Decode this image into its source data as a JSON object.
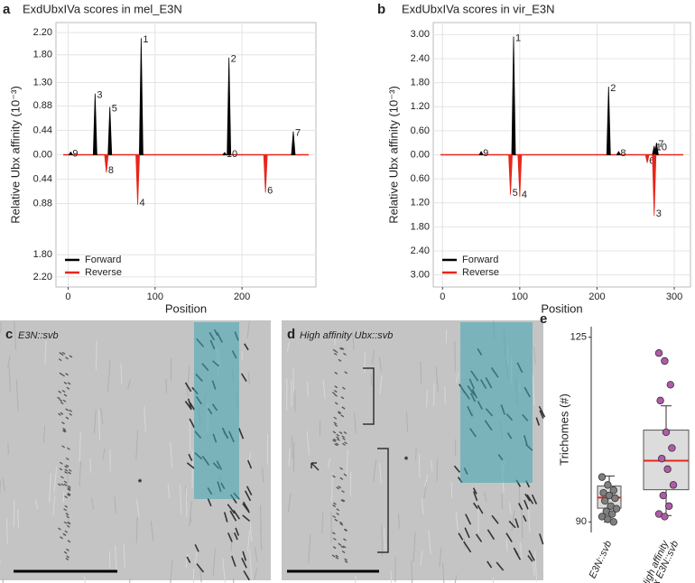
{
  "chart_data": [
    {
      "type": "spike",
      "panel_label": "a",
      "title": "ExdUbxIVa scores in mel_E3N",
      "xlabel": "Position",
      "ylabel": "Relative Ubx affinity (10⁻³)",
      "xlim": [
        -14,
        285
      ],
      "ylim": [
        -2.38,
        2.38
      ],
      "xticks": [
        0,
        100,
        200
      ],
      "yticks": [
        {
          "value": 2.2,
          "label": "2.20"
        },
        {
          "value": 1.8,
          "label": "1.80"
        },
        {
          "value": 1.3,
          "label": "1.30"
        },
        {
          "value": 0.88,
          "label": "0.88"
        },
        {
          "value": 0.44,
          "label": "0.44"
        },
        {
          "value": 0,
          "label": "0.00"
        },
        {
          "value": -0.44,
          "label": "0.44"
        },
        {
          "value": -0.88,
          "label": "0.88"
        },
        {
          "value": -1.8,
          "label": "1.80"
        },
        {
          "value": -2.2,
          "label": "2.20"
        }
      ],
      "grid": true,
      "legend": "bottom-left",
      "series": [
        {
          "name": "Forward",
          "color": "#000000",
          "x": [
            3,
            31,
            48,
            84,
            180,
            185,
            259
          ],
          "values": [
            0.05,
            1.1,
            0.86,
            2.1,
            0.04,
            1.75,
            0.42
          ],
          "labels": [
            "9",
            "3",
            "5",
            "1",
            "10",
            "2",
            "7"
          ]
        },
        {
          "name": "Reverse",
          "color": "#e8251a",
          "x": [
            44,
            80,
            227
          ],
          "values": [
            -0.32,
            -0.9,
            -0.68
          ],
          "labels": [
            "8",
            "4",
            "6"
          ]
        }
      ]
    },
    {
      "type": "spike",
      "panel_label": "b",
      "title": "ExdUbxIVa scores in vir_E3N",
      "xlabel": "Position",
      "ylabel": "Relative Ubx affinity (10⁻³)",
      "xlim": [
        -12,
        321
      ],
      "ylim": [
        -3.3,
        3.3
      ],
      "xticks": [
        0,
        100,
        200,
        300
      ],
      "yticks": [
        {
          "value": 3,
          "label": "3.00"
        },
        {
          "value": 2.4,
          "label": "2.40"
        },
        {
          "value": 1.8,
          "label": "1.80"
        },
        {
          "value": 1.2,
          "label": "1.20"
        },
        {
          "value": 0.6,
          "label": "0.60"
        },
        {
          "value": 0,
          "label": "0.00"
        },
        {
          "value": -0.6,
          "label": "0.60"
        },
        {
          "value": -1.2,
          "label": "1.20"
        },
        {
          "value": -1.8,
          "label": "1.80"
        },
        {
          "value": -2.4,
          "label": "2.40"
        },
        {
          "value": -3,
          "label": "3.00"
        }
      ],
      "grid": true,
      "legend": "bottom-left",
      "series": [
        {
          "name": "Forward",
          "color": "#000000",
          "x": [
            50,
            92,
            215,
            228,
            274,
            277
          ],
          "values": [
            0.08,
            2.95,
            1.7,
            0.08,
            0.22,
            0.3
          ],
          "labels": [
            "9",
            "1",
            "2",
            "8",
            "10",
            "7"
          ]
        },
        {
          "name": "Reverse",
          "color": "#e8251a",
          "x": [
            88,
            100,
            265,
            274
          ],
          "values": [
            -1.0,
            -1.05,
            -0.2,
            -1.52
          ],
          "labels": [
            "5",
            "4",
            "6",
            "3"
          ]
        }
      ]
    },
    {
      "type": "box",
      "panel_label": "e",
      "ylabel": "Trichomes (#)",
      "ylim": [
        88,
        127
      ],
      "yticks": [
        90,
        125
      ],
      "categories": [
        [
          "E3N::svb"
        ],
        [
          "High affinity",
          "Ubx E3N::svb"
        ]
      ],
      "category_colors": [
        "#000000",
        "#c0198f"
      ],
      "series": [
        {
          "color": "#7f7f7f",
          "values": [
            98.5,
            97,
            96,
            95.5,
            95,
            94.5,
            94,
            93,
            92.5,
            92,
            91.5,
            91,
            90.5,
            90
          ],
          "q1": 92.6,
          "median": 94.6,
          "q3": 96.8,
          "whisker_low": 90,
          "whisker_high": 98.7
        },
        {
          "color": "#b25aa8",
          "values": [
            122,
            120.5,
            116,
            113,
            107,
            104,
            102,
            100,
            97,
            95,
            93,
            91.5,
            91
          ],
          "q1": 96.1,
          "median": 101.6,
          "q3": 107.4,
          "whisker_low": 91.2,
          "whisker_high": 112
        }
      ]
    }
  ],
  "images": [
    {
      "panel_label": "c",
      "caption": "E3N::svb",
      "annotation": "*"
    },
    {
      "panel_label": "d",
      "caption": "High affinity Ubx::svb",
      "annotation": "*"
    }
  ]
}
